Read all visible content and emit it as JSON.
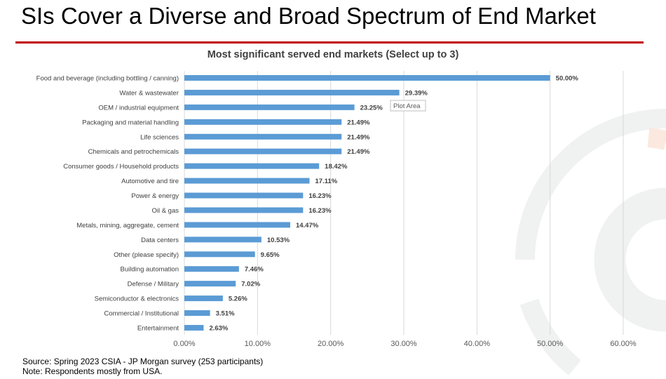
{
  "slide": {
    "title": "SIs Cover a Diverse and Broad Spectrum of End Market",
    "accent_color": "#c00000",
    "source": "Source: Spring 2023 CSIA - JP Morgan survey (253 participants)",
    "note": "Note: Respondents mostly from USA."
  },
  "tooltip": "Plot Area",
  "chart_data": {
    "type": "bar",
    "orientation": "horizontal",
    "title": "Most significant served end markets (Select up to 3)",
    "categories": [
      "Food and beverage (including bottling / canning)",
      "Water & wastewater",
      "OEM / industrial equipment",
      "Packaging and material handling",
      "Life sciences",
      "Chemicals and petrochemicals",
      "Consumer goods / Household products",
      "Automotive and tire",
      "Power & energy",
      "Oil & gas",
      "Metals, mining, aggregate, cement",
      "Data centers",
      "Other (please specify)",
      "Building automation",
      "Defense / Military",
      "Semiconductor & electronics",
      "Commercial / Institutional",
      "Entertainment"
    ],
    "values": [
      50.0,
      29.39,
      23.25,
      21.49,
      21.49,
      21.49,
      18.42,
      17.11,
      16.23,
      16.23,
      14.47,
      10.53,
      9.65,
      7.46,
      7.02,
      5.26,
      3.51,
      2.63
    ],
    "data_labels": [
      "50.00%",
      "29.39%",
      "23.25%",
      "21.49%",
      "21.49%",
      "21.49%",
      "18.42%",
      "17.11%",
      "16.23%",
      "16.23%",
      "14.47%",
      "10.53%",
      "9.65%",
      "7.46%",
      "7.02%",
      "5.26%",
      "3.51%",
      "2.63%"
    ],
    "xlim": [
      0,
      60
    ],
    "xticks": [
      0,
      10,
      20,
      30,
      40,
      50,
      60
    ],
    "xtick_labels": [
      "0.00%",
      "10.00%",
      "20.00%",
      "30.00%",
      "40.00%",
      "50.00%",
      "60.00%"
    ],
    "grid": true,
    "bar_color": "#5b9bd5",
    "xlabel": "",
    "ylabel": ""
  }
}
